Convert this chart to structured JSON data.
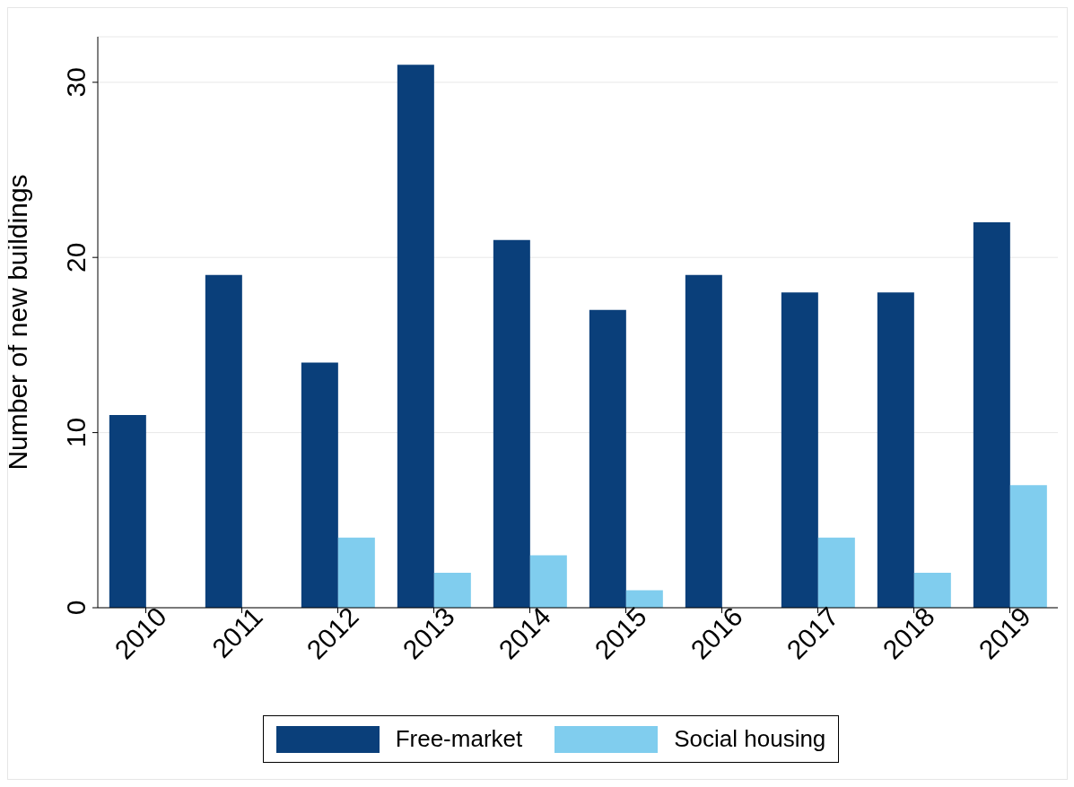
{
  "chart_data": {
    "type": "bar",
    "ylabel": "Number of new buildings",
    "categories": [
      "2010",
      "2011",
      "2012",
      "2013",
      "2014",
      "2015",
      "2016",
      "2017",
      "2018",
      "2019"
    ],
    "series": [
      {
        "name": "Free-market",
        "color": "#0a3f7a",
        "values": [
          11,
          19,
          14,
          31,
          21,
          17,
          19,
          18,
          18,
          22
        ]
      },
      {
        "name": "Social housing",
        "color": "#80cdee",
        "values": [
          0,
          0,
          4,
          2,
          3,
          1,
          0,
          4,
          2,
          7
        ]
      }
    ],
    "ylim": [
      0,
      32.6
    ],
    "yticks": [
      0,
      10,
      20,
      30
    ],
    "grid": "y",
    "legend": "bottom"
  }
}
